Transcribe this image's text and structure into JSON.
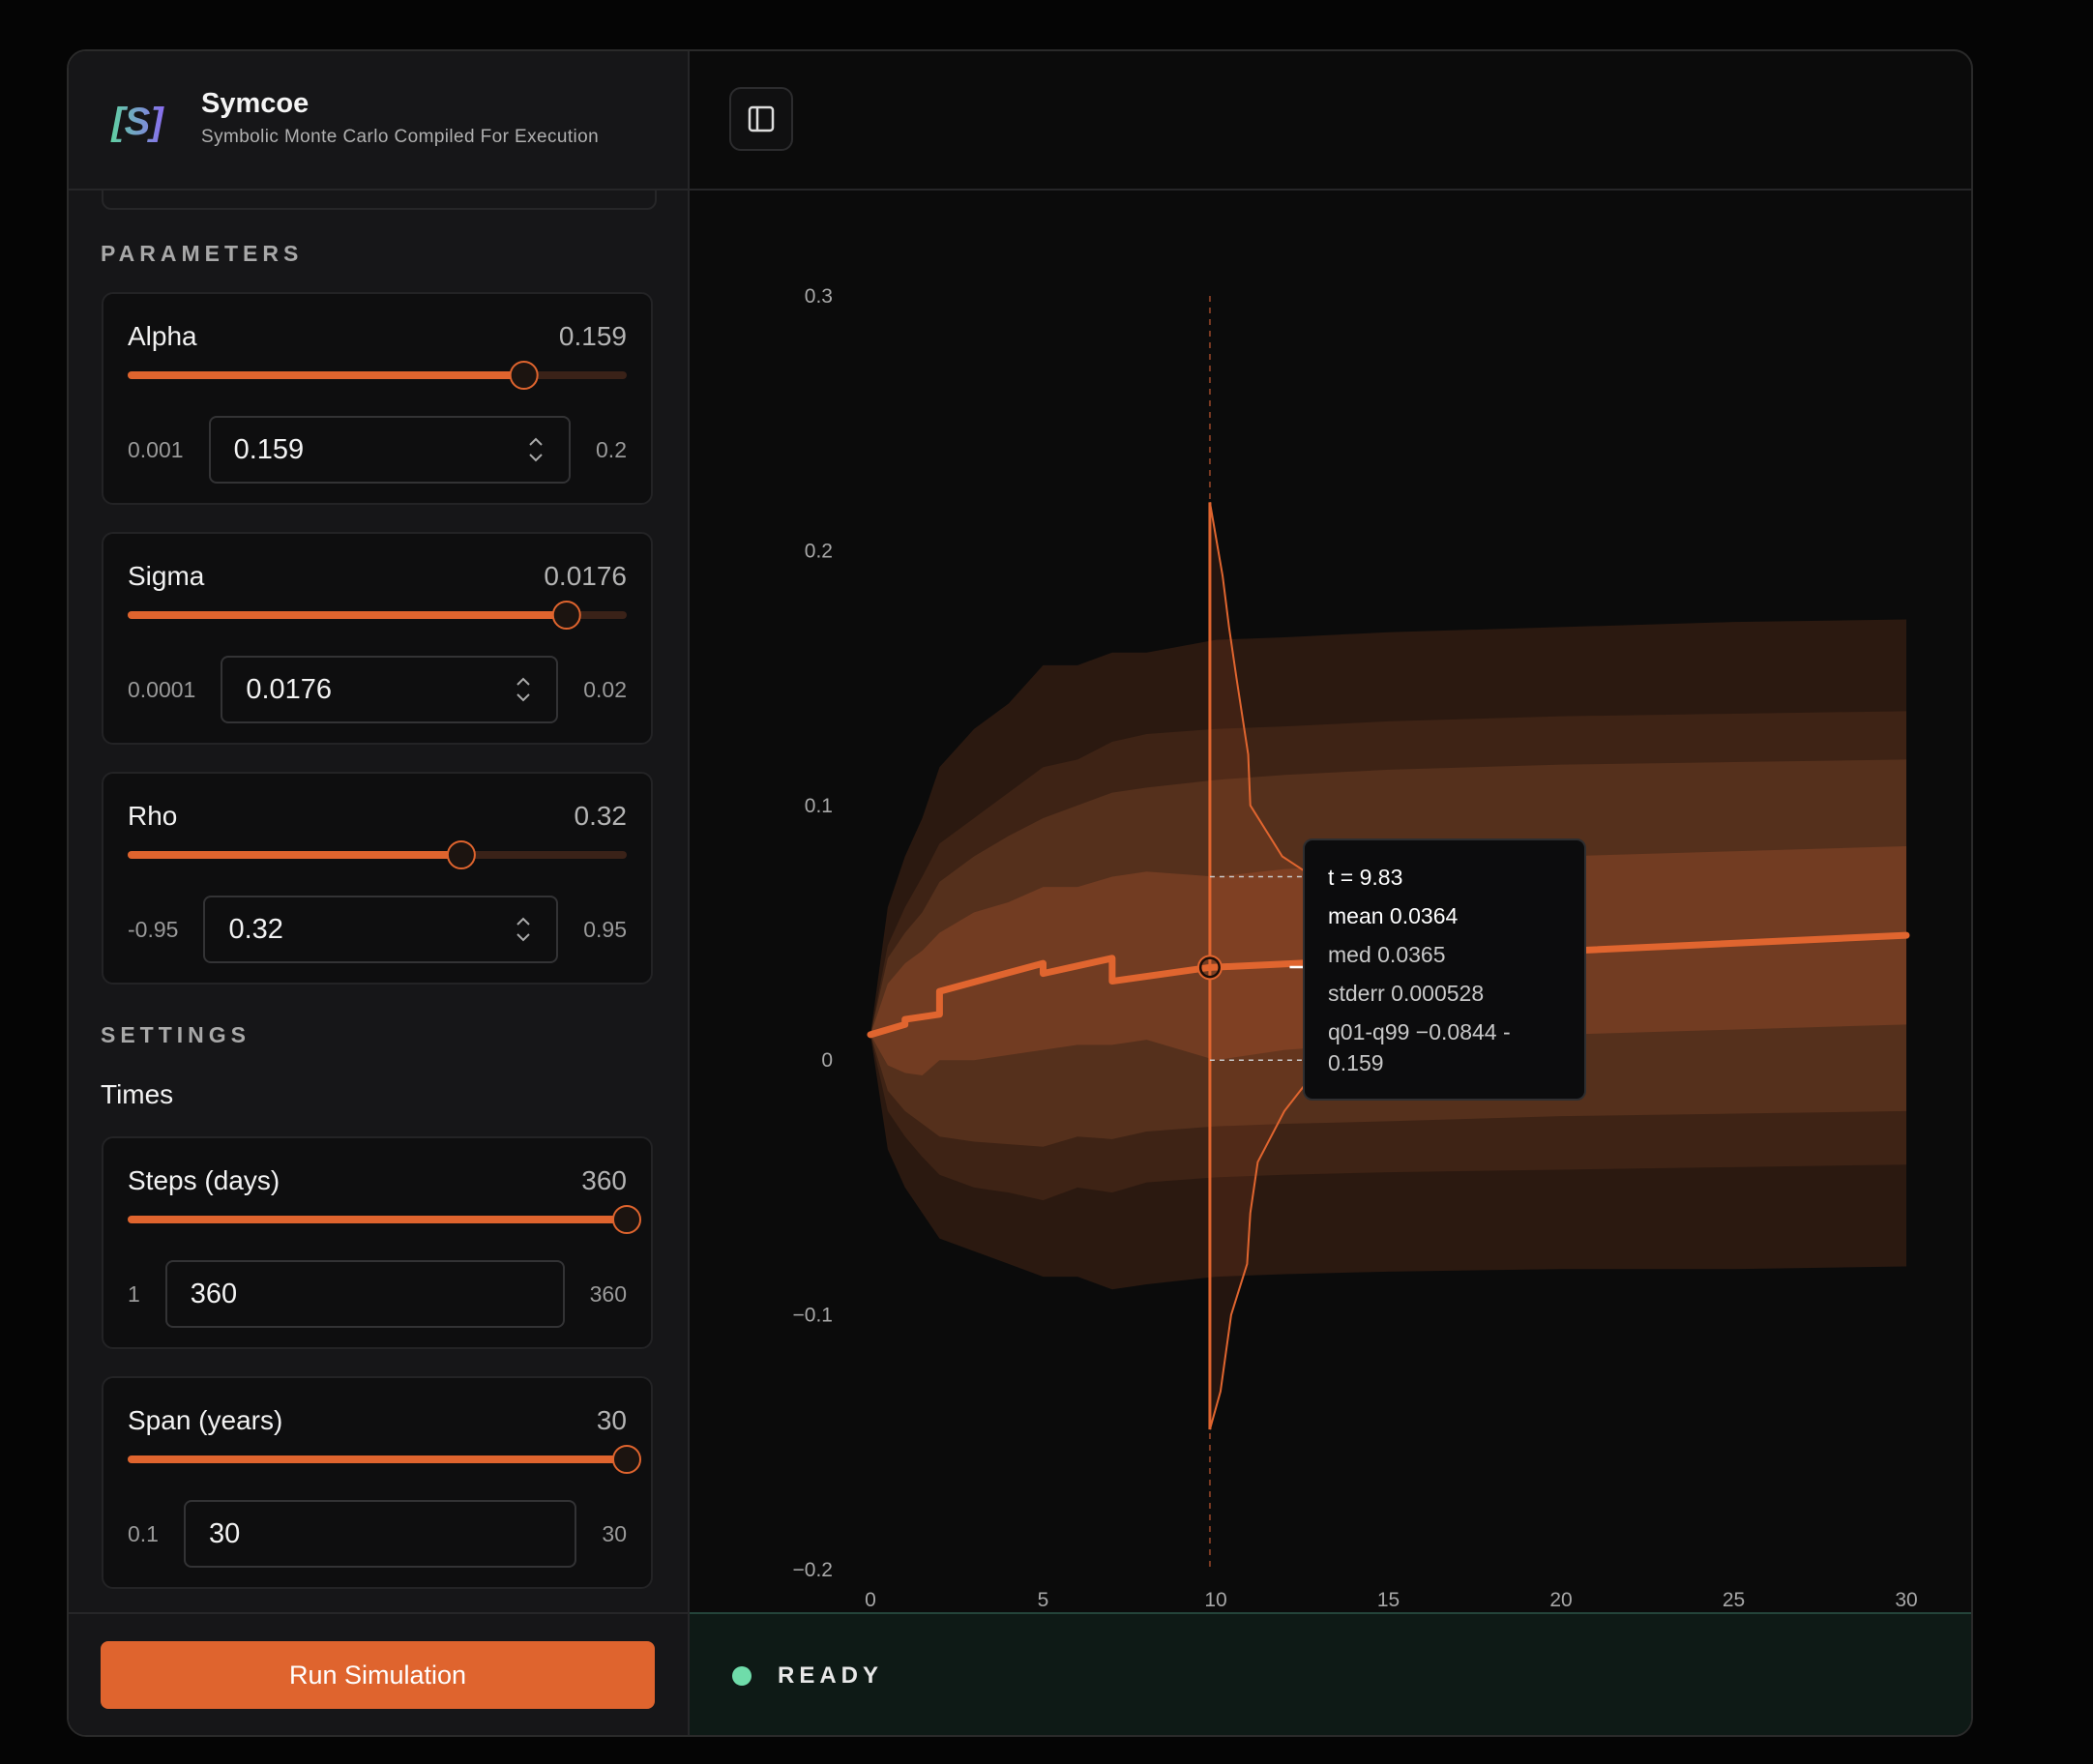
{
  "header": {
    "title": "Symcoe",
    "subtitle": "Symbolic Monte Carlo Compiled For Execution"
  },
  "parameters": {
    "heading": "PARAMETERS",
    "items": [
      {
        "label": "Alpha",
        "value": 0.159,
        "min": 0.001,
        "max": 0.2
      },
      {
        "label": "Sigma",
        "value": 0.0176,
        "min": 0.0001,
        "max": 0.02
      },
      {
        "label": "Rho",
        "value": 0.32,
        "min": -0.95,
        "max": 0.95
      }
    ]
  },
  "settings": {
    "heading": "SETTINGS",
    "group": "Times",
    "items": [
      {
        "label": "Steps (days)",
        "value": 360,
        "min": 1,
        "max": 360
      },
      {
        "label": "Span (years)",
        "value": 30,
        "min": 0.1,
        "max": 30
      }
    ]
  },
  "button": "Run Simulation",
  "status": "READY",
  "chart_data": {
    "type": "fan",
    "xlim": [
      0,
      30
    ],
    "xticks": [
      0,
      5,
      10,
      15,
      20,
      25,
      30
    ],
    "ylim": [
      -0.2,
      0.3
    ],
    "yticks": [
      0.3,
      0.2,
      0.1,
      0,
      {
        "value": -0.1,
        "label": "−0.1"
      },
      {
        "value": -0.2,
        "label": "−0.2"
      }
    ],
    "colors": [
      "#2b1910",
      "#3e2315",
      "#55301c",
      "#723c22"
    ],
    "line_color": "#e0652f",
    "x": [
      0,
      0.5,
      1,
      1.5,
      2,
      3,
      4,
      5,
      6,
      7,
      8,
      10,
      12,
      15,
      20,
      25,
      30
    ],
    "bands": [
      {
        "upper": [
          0.01,
          0.06,
          0.08,
          0.095,
          0.115,
          0.13,
          0.14,
          0.155,
          0.155,
          0.16,
          0.16,
          0.165,
          0.166,
          0.168,
          0.17,
          0.172,
          0.173
        ],
        "lower": [
          0.01,
          -0.035,
          -0.05,
          -0.06,
          -0.07,
          -0.075,
          -0.08,
          -0.085,
          -0.085,
          -0.09,
          -0.088,
          -0.085,
          -0.084,
          -0.083,
          -0.082,
          -0.082,
          -0.081
        ]
      },
      {
        "upper": [
          0.01,
          0.045,
          0.06,
          0.072,
          0.085,
          0.095,
          0.105,
          0.115,
          0.118,
          0.125,
          0.128,
          0.13,
          0.131,
          0.133,
          0.135,
          0.136,
          0.137
        ],
        "lower": [
          0.01,
          -0.02,
          -0.03,
          -0.038,
          -0.045,
          -0.05,
          -0.052,
          -0.055,
          -0.05,
          -0.052,
          -0.048,
          -0.046,
          -0.045,
          -0.044,
          -0.043,
          -0.042,
          -0.041
        ]
      },
      {
        "upper": [
          0.01,
          0.04,
          0.05,
          0.058,
          0.07,
          0.08,
          0.088,
          0.095,
          0.1,
          0.105,
          0.107,
          0.11,
          0.112,
          0.114,
          0.116,
          0.117,
          0.118
        ],
        "lower": [
          0.01,
          -0.012,
          -0.02,
          -0.025,
          -0.03,
          -0.032,
          -0.033,
          -0.034,
          -0.03,
          -0.031,
          -0.028,
          -0.026,
          -0.025,
          -0.024,
          -0.022,
          -0.021,
          -0.02
        ]
      },
      {
        "upper": [
          0.01,
          0.03,
          0.038,
          0.043,
          0.05,
          0.058,
          0.062,
          0.068,
          0.068,
          0.072,
          0.074,
          0.072,
          0.075,
          0.077,
          0.08,
          0.082,
          0.084
        ],
        "lower": [
          0.01,
          -0.002,
          -0.005,
          -0.006,
          0,
          0,
          0.002,
          0.004,
          0.006,
          0.006,
          0.008,
          0,
          0.004,
          0.007,
          0.01,
          0.012,
          0.014
        ]
      }
    ],
    "mean": {
      "x": [
        0,
        1,
        1,
        2,
        2,
        5,
        5,
        7,
        7,
        9.83,
        30
      ],
      "values": [
        0.01,
        0.014,
        0.016,
        0.018,
        0.027,
        0.038,
        0.034,
        0.04,
        0.031,
        0.0364,
        0.049
      ]
    },
    "cursor": {
      "t": 9.83,
      "mean": 0.0364,
      "median": 0.0365,
      "iqr": [
        0.072,
        0
      ]
    },
    "distribution": {
      "y": [
        -0.145,
        -0.13,
        -0.1,
        -0.08,
        -0.06,
        -0.04,
        -0.02,
        -0.005,
        0.01,
        0.04,
        0.065,
        0.072,
        0.08,
        0.1,
        0.12,
        0.15,
        0.17,
        0.19,
        0.219
      ],
      "density": [
        0,
        0.1,
        0.2,
        0.35,
        0.38,
        0.45,
        0.7,
        0.98,
        1,
        1,
        0.98,
        0.97,
        0.68,
        0.38,
        0.36,
        0.25,
        0.18,
        0.12,
        0
      ]
    },
    "tooltip": [
      "t = 9.83",
      "mean 0.0364",
      "med 0.0365",
      "stderr 0.000528",
      "q01-q99 −0.0844 - 0.159"
    ]
  }
}
